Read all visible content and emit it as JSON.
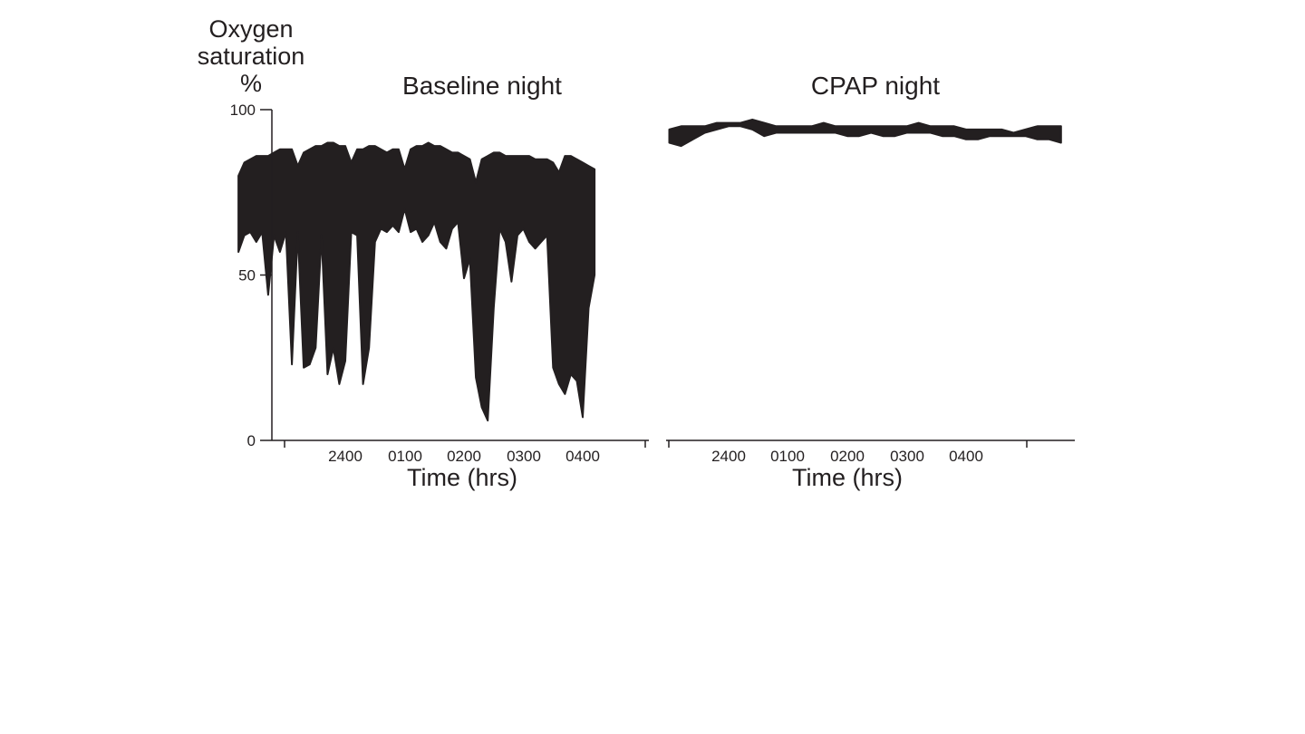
{
  "y_axis_label_lines": [
    "Oxygen",
    "saturation",
    "%"
  ],
  "chart_data": [
    {
      "type": "line",
      "title": "Baseline night",
      "xlabel": "Time (hrs)",
      "x_tick_labels": [
        "2400",
        "0100",
        "0200",
        "0300",
        "0400"
      ],
      "x_tick_hours": [
        0,
        1,
        2,
        3,
        4
      ],
      "xlim_hours": [
        -1.95,
        4.35
      ],
      "ylim": [
        0,
        100
      ],
      "y_ticks": [
        0,
        50,
        100
      ],
      "grid": false,
      "color": "#231f20",
      "series": [
        {
          "envelope": "max-min band",
          "x": [
            -1.8,
            -1.7,
            -1.6,
            -1.5,
            -1.4,
            -1.3,
            -1.2,
            -1.1,
            -1.0,
            -0.9,
            -0.8,
            -0.7,
            -0.6,
            -0.5,
            -0.4,
            -0.3,
            -0.2,
            -0.1,
            0.0,
            0.1,
            0.2,
            0.3,
            0.4,
            0.5,
            0.6,
            0.7,
            0.8,
            0.9,
            1.0,
            1.1,
            1.2,
            1.3,
            1.4,
            1.5,
            1.6,
            1.7,
            1.8,
            1.9,
            2.0,
            2.1,
            2.2,
            2.3,
            2.4,
            2.5,
            2.6,
            2.7,
            2.8,
            2.9,
            3.0,
            3.1,
            3.2,
            3.3,
            3.4,
            3.5,
            3.6,
            3.7,
            3.8,
            3.9,
            4.0,
            4.1,
            4.2
          ],
          "max": [
            80,
            84,
            85,
            86,
            86,
            86,
            87,
            88,
            88,
            88,
            83,
            87,
            88,
            89,
            89,
            90,
            90,
            89,
            89,
            84,
            88,
            88,
            89,
            89,
            88,
            87,
            88,
            88,
            82,
            88,
            89,
            89,
            90,
            89,
            89,
            88,
            87,
            87,
            86,
            85,
            78,
            85,
            86,
            87,
            87,
            86,
            86,
            86,
            86,
            86,
            85,
            85,
            85,
            84,
            81,
            86,
            86,
            85,
            84,
            83,
            82
          ],
          "min": [
            57,
            62,
            63,
            60,
            63,
            44,
            62,
            57,
            63,
            23,
            63,
            22,
            23,
            28,
            62,
            20,
            28,
            17,
            24,
            63,
            62,
            17,
            28,
            60,
            64,
            63,
            65,
            63,
            70,
            63,
            64,
            60,
            62,
            66,
            60,
            58,
            64,
            66,
            49,
            55,
            19,
            10,
            6,
            40,
            64,
            60,
            48,
            62,
            64,
            60,
            58,
            60,
            62,
            22,
            17,
            14,
            20,
            18,
            7,
            40,
            50
          ]
        }
      ]
    },
    {
      "type": "line",
      "title": "CPAP night",
      "xlabel": "Time (hrs)",
      "x_tick_labels": [
        "2400",
        "0100",
        "0200",
        "0300",
        "0400"
      ],
      "x_tick_hours": [
        0,
        1,
        2,
        3,
        4
      ],
      "xlim_hours": [
        -1.1,
        5.6
      ],
      "ylim": [
        0,
        100
      ],
      "grid": false,
      "color": "#231f20",
      "series": [
        {
          "envelope": "max-min band",
          "x": [
            -1.0,
            -0.8,
            -0.6,
            -0.4,
            -0.2,
            0.0,
            0.2,
            0.4,
            0.6,
            0.8,
            1.0,
            1.2,
            1.4,
            1.6,
            1.8,
            2.0,
            2.2,
            2.4,
            2.6,
            2.8,
            3.0,
            3.2,
            3.4,
            3.6,
            3.8,
            4.0,
            4.2,
            4.4,
            4.6,
            4.8,
            5.0,
            5.2,
            5.4,
            5.6
          ],
          "max": [
            94,
            95,
            95,
            95,
            96,
            96,
            96,
            97,
            96,
            95,
            95,
            95,
            95,
            96,
            95,
            95,
            95,
            95,
            95,
            95,
            95,
            96,
            95,
            95,
            95,
            94,
            94,
            94,
            94,
            93,
            94,
            95,
            95,
            95
          ],
          "min": [
            90,
            89,
            91,
            93,
            94,
            95,
            95,
            94,
            92,
            93,
            93,
            93,
            93,
            93,
            93,
            92,
            92,
            93,
            92,
            92,
            93,
            93,
            93,
            92,
            92,
            91,
            91,
            92,
            92,
            92,
            92,
            91,
            91,
            90
          ]
        }
      ]
    }
  ]
}
